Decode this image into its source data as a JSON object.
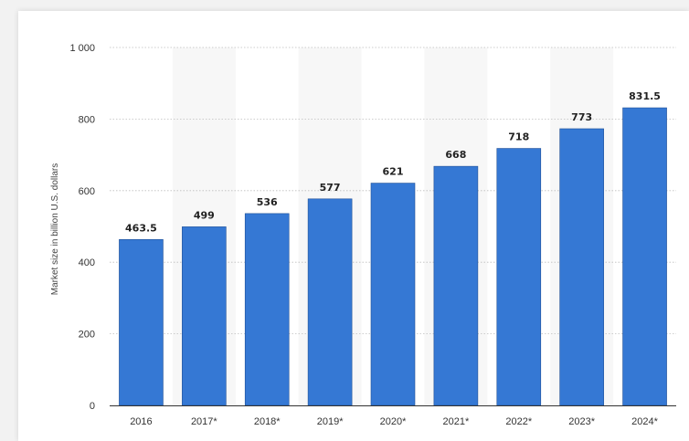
{
  "chart_data": {
    "type": "bar",
    "categories": [
      "2016",
      "2017*",
      "2018*",
      "2019*",
      "2020*",
      "2021*",
      "2022*",
      "2023*",
      "2024*"
    ],
    "values": [
      463.5,
      499,
      536,
      577,
      621,
      668,
      718,
      773,
      831.5
    ],
    "data_labels": [
      "463.5",
      "499",
      "536",
      "577",
      "621",
      "668",
      "718",
      "773",
      "831.5"
    ],
    "ylabel": "Market size in billion U.S. dollars",
    "xlabel": "",
    "ylim": [
      0,
      1000
    ],
    "yticks": [
      0,
      200,
      400,
      600,
      800,
      1000
    ],
    "ytick_labels": [
      "0",
      "200",
      "400",
      "600",
      "800",
      "1 000"
    ],
    "grid": true,
    "bar_color": "#3578d4",
    "band_color": "#f7f7f7"
  }
}
